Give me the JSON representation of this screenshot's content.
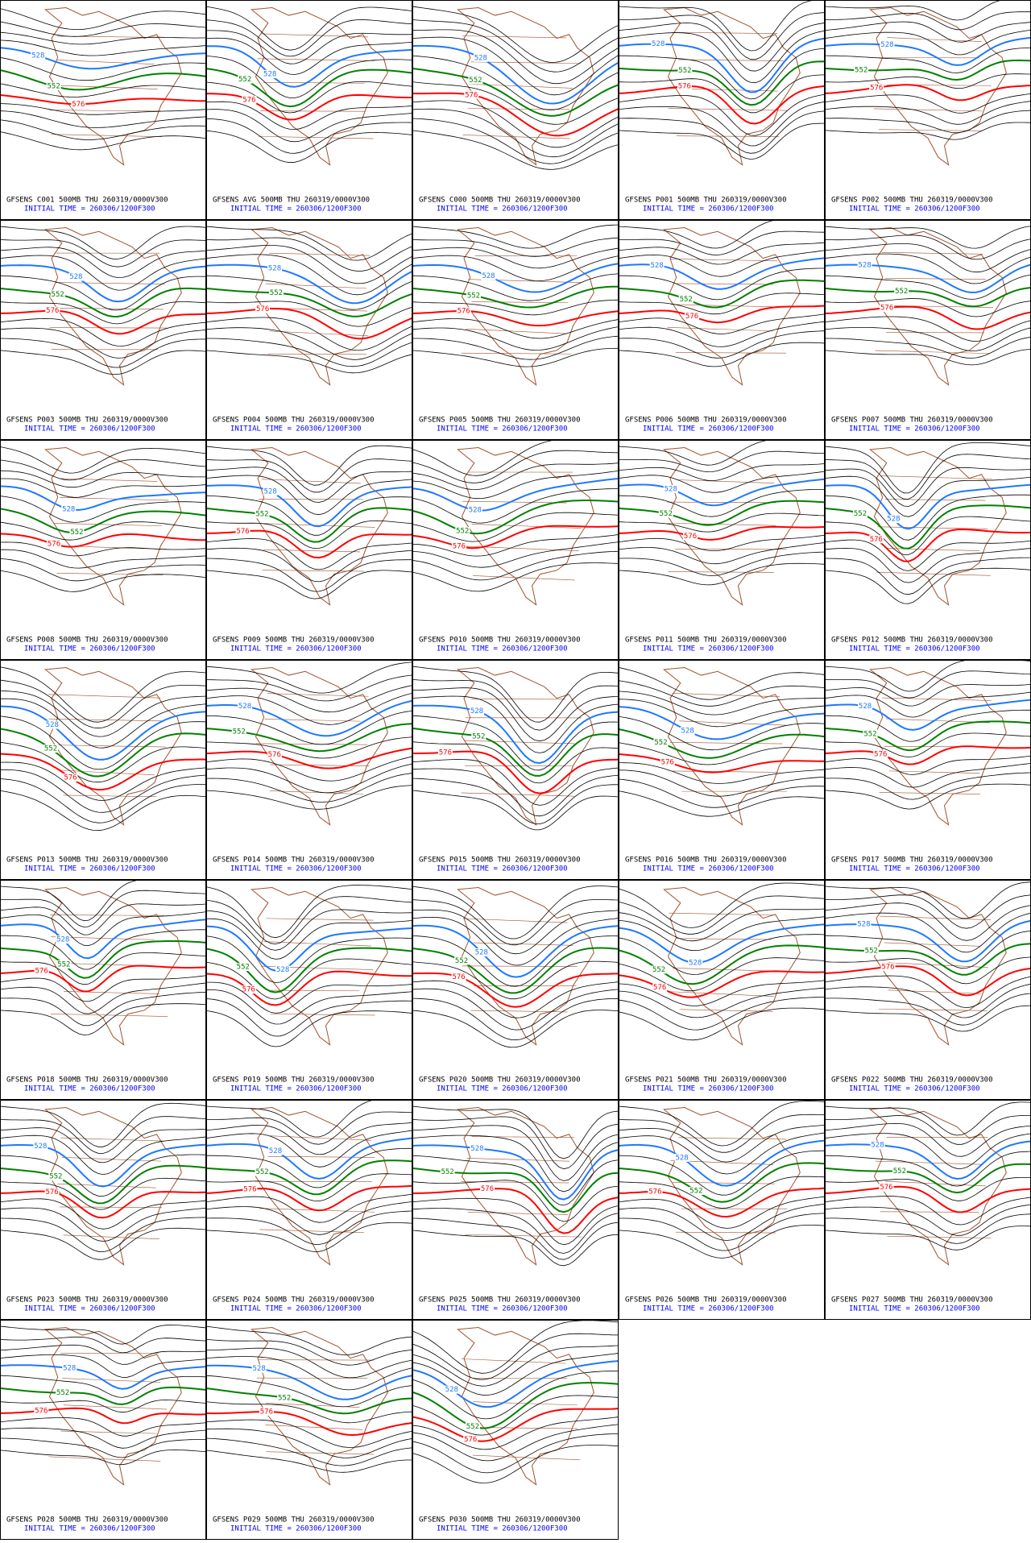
{
  "panels": [
    {
      "title": "GFSENS C001 500MB THU 260319/0000V300"
    },
    {
      "title": "GFSENS AVG 500MB THU 260319/0000V300"
    },
    {
      "title": "GFSENS C000 500MB THU 260319/0000V300"
    },
    {
      "title": "GFSENS P001 500MB THU 260319/0000V300"
    },
    {
      "title": "GFSENS P002 500MB THU 260319/0000V300"
    },
    {
      "title": "GFSENS P003 500MB THU 260319/0000V300"
    },
    {
      "title": "GFSENS P004 500MB THU 260319/0000V300"
    },
    {
      "title": "GFSENS P005 500MB THU 260319/0000V300"
    },
    {
      "title": "GFSENS P006 500MB THU 260319/0000V300"
    },
    {
      "title": "GFSENS P007 500MB THU 260319/0000V300"
    },
    {
      "title": "GFSENS P008 500MB THU 260319/0000V300"
    },
    {
      "title": "GFSENS P009 500MB THU 260319/0000V300"
    },
    {
      "title": "GFSENS P010 500MB THU 260319/0000V300"
    },
    {
      "title": "GFSENS P011 500MB THU 260319/0000V300"
    },
    {
      "title": "GFSENS P012 500MB THU 260319/0000V300"
    },
    {
      "title": "GFSENS P013 500MB THU 260319/0000V300"
    },
    {
      "title": "GFSENS P014 500MB THU 260319/0000V300"
    },
    {
      "title": "GFSENS P015 500MB THU 260319/0000V300"
    },
    {
      "title": "GFSENS P016 500MB THU 260319/0000V300"
    },
    {
      "title": "GFSENS P017 500MB THU 260319/0000V300"
    },
    {
      "title": "GFSENS P018 500MB THU 260319/0000V300"
    },
    {
      "title": "GFSENS P019 500MB THU 260319/0000V300"
    },
    {
      "title": "GFSENS P020 500MB THU 260319/0000V300"
    },
    {
      "title": "GFSENS P021 500MB THU 260319/0000V300"
    },
    {
      "title": "GFSENS P022 500MB THU 260319/0000V300"
    },
    {
      "title": "GFSENS P023 500MB THU 260319/0000V300"
    },
    {
      "title": "GFSENS P024 500MB THU 260319/0000V300"
    },
    {
      "title": "GFSENS P025 500MB THU 260319/0000V300"
    },
    {
      "title": "GFSENS P026 500MB THU 260319/0000V300"
    },
    {
      "title": "GFSENS P027 500MB THU 260319/0000V300"
    },
    {
      "title": "GFSENS P028 500MB THU 260319/0000V300"
    },
    {
      "title": "GFSENS P029 500MB THU 260319/0000V300"
    },
    {
      "title": "GFSENS P030 500MB THU 260319/0000V300"
    }
  ],
  "initial_time": "INITIAL TIME = 260306/1200F300",
  "contours": [
    {
      "label": "528",
      "color": "#1e78ff"
    },
    {
      "label": "552",
      "color": "#008000"
    },
    {
      "label": "576",
      "color": "#ff0000"
    }
  ]
}
